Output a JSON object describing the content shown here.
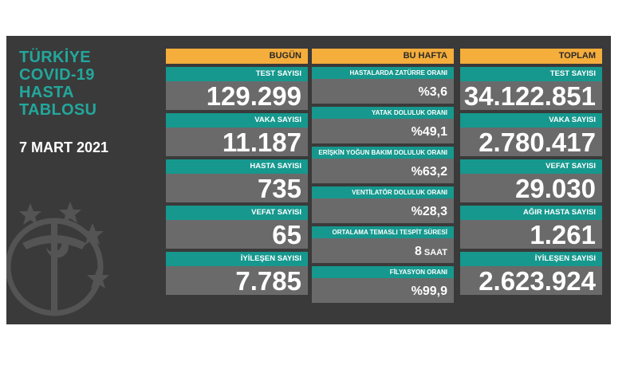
{
  "title": [
    "TÜRKİYE",
    "COVID-19",
    "HASTA",
    "TABLOSU"
  ],
  "date": "7 MART 2021",
  "columns": {
    "today": {
      "header": "BUGÜN",
      "items": [
        {
          "label": "TEST SAYISI",
          "value": "129.299"
        },
        {
          "label": "VAKA SAYISI",
          "value": "11.187"
        },
        {
          "label": "HASTA SAYISI",
          "value": "735"
        },
        {
          "label": "VEFAT SAYISI",
          "value": "65"
        },
        {
          "label": "İYİLEŞEN SAYISI",
          "value": "7.785"
        }
      ]
    },
    "week": {
      "header": "BU HAFTA",
      "items": [
        {
          "label": "HASTALARDA ZATÜRRE ORANI",
          "value": "%3,6"
        },
        {
          "label": "YATAK DOLULUK ORANI",
          "value": "%49,1"
        },
        {
          "label": "ERİŞKİN YOĞUN BAKIM DOLULUK ORANI",
          "value": "%63,2"
        },
        {
          "label": "VENTİLATÖR DOLULUK ORANI",
          "value": "%28,3"
        },
        {
          "label": "ORTALAMA TEMASLI TESPİT SÜRESİ",
          "value": "8",
          "unit": "SAAT"
        },
        {
          "label": "FİLYASYON ORANI",
          "value": "%99,9"
        }
      ]
    },
    "total": {
      "header": "TOPLAM",
      "items": [
        {
          "label": "TEST SAYISI",
          "value": "34.122.851"
        },
        {
          "label": "VAKA SAYISI",
          "value": "2.780.417"
        },
        {
          "label": "VEFAT SAYISI",
          "value": "29.030"
        },
        {
          "label": "AĞIR HASTA SAYISI",
          "value": "1.261"
        },
        {
          "label": "İYİLEŞEN SAYISI",
          "value": "2.623.924"
        }
      ]
    }
  },
  "colors": {
    "background": "#3a3a3a",
    "title": "#23a79c",
    "header": "#f5ad3b",
    "label": "#16988e",
    "value": "#6a6a6a"
  },
  "icons": [
    "ministry-emblem-icon"
  ]
}
